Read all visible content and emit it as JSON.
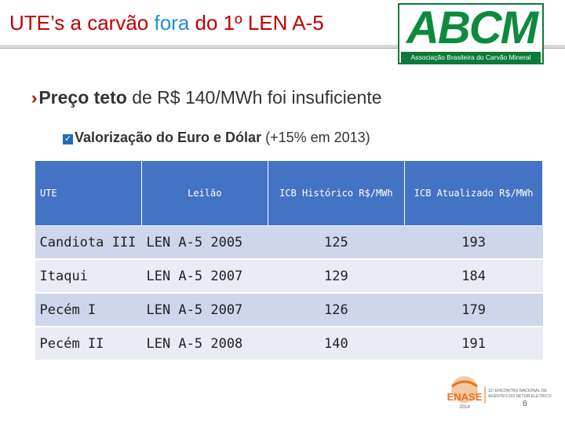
{
  "slide": {
    "title_part1": "UTE’s a carvão ",
    "title_highlight": "fora",
    "title_part2": " do 1º LEN A-5",
    "logo_abcm": "ABCM",
    "logo_abcm_subtitle": "Associação Brasileira do Carvão Mineral",
    "bullet1_bold": "Preço teto",
    "bullet1_rest": " de R$ 140/MWh foi insuficiente",
    "bullet2_bold": "Valorização do Euro e Dólar",
    "bullet2_rest": " (+15% em 2013)",
    "page_number": "6",
    "logo_enase": "ENASE",
    "logo_enase_year": "2014",
    "logo_enase_line1": "11º ENCONTRO NACIONAL DE",
    "logo_enase_line2": "AGENTES DO SETOR ELÉTRICO"
  },
  "table": {
    "headers": [
      "UTE",
      "Leilão",
      "ICB Histórico R$/MWh",
      "ICB Atualizado R$/MWh"
    ],
    "rows": [
      {
        "ute": "Candiota III",
        "leilao": "LEN A-5 2005",
        "historico": "125",
        "atualizado": "193"
      },
      {
        "ute": "Itaqui",
        "leilao": "LEN A-5 2007",
        "historico": "129",
        "atualizado": "184"
      },
      {
        "ute": "Pecém I",
        "leilao": "LEN A-5 2007",
        "historico": "126",
        "atualizado": "179"
      },
      {
        "ute": "Pecém II",
        "leilao": "LEN A-5 2008",
        "historico": "140",
        "atualizado": "191"
      }
    ]
  },
  "colors": {
    "title_red": "#c00000",
    "title_blue": "#1f8fd3",
    "header_blue": "#4472c4",
    "row_dark": "#cfd5ea",
    "row_light": "#e9ebf5",
    "abcm_green": "#0e8a3e",
    "enase_orange": "#e8711c"
  }
}
